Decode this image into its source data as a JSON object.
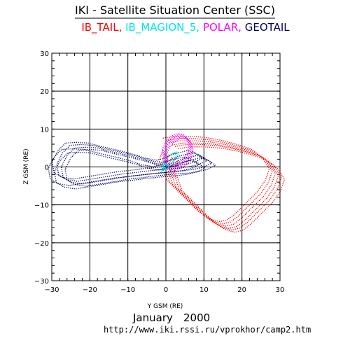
{
  "header": {
    "title": "IKI - Satellite Situation Center (SSC)",
    "satellites": [
      {
        "name": "IB_TAIL",
        "sep": ",",
        "color": "#ff0000"
      },
      {
        "name": "IB_MAGION_5",
        "sep": ",",
        "color": "#00e5e5"
      },
      {
        "name": "POLAR",
        "sep": ",",
        "color": "#ff00ff"
      },
      {
        "name": "GEOTAIL",
        "sep": "",
        "color": "#000066"
      }
    ]
  },
  "footer": {
    "month": "January",
    "year": "2000",
    "url": "http://www.iki.rssi.ru/vprokhor/camp2.htm"
  },
  "chart_data": {
    "type": "scatter",
    "title": "IB_TAIL, IB_MAGION_5, POLAR, GEOTAIL",
    "xlabel": "Y GSM (RE)",
    "ylabel": "Z GSM (RE)",
    "xlim": [
      -30,
      30
    ],
    "ylim": [
      -30,
      30
    ],
    "xticks": [
      -30,
      -20,
      -10,
      0,
      10,
      20,
      30
    ],
    "yticks": [
      -30,
      -20,
      -10,
      0,
      10,
      20,
      30
    ],
    "grid": true,
    "series": [
      {
        "name": "IB_TAIL",
        "color": "#ff0000",
        "style": "dotted-orbits",
        "x": [
          0,
          3,
          7,
          11,
          15,
          19,
          23,
          26,
          28,
          27,
          25,
          23,
          21,
          19,
          17,
          15,
          13,
          11,
          9,
          7,
          5,
          3,
          1,
          0,
          -1,
          0
        ],
        "y": [
          7,
          7.5,
          7.5,
          7.2,
          6.5,
          5.5,
          4.2,
          2,
          -1,
          -4,
          -7,
          -9,
          -11,
          -13,
          -14.5,
          -15,
          -14.5,
          -13.5,
          -12,
          -10,
          -8,
          -6,
          -4,
          -1,
          1,
          4
        ]
      },
      {
        "name": "IB_MAGION_5",
        "color": "#00e5e5",
        "style": "dotted-orbits",
        "x": [
          -1,
          0,
          1,
          2,
          2.8,
          3,
          2.6,
          1.8,
          0.8,
          -0.2,
          -0.8,
          -1
        ],
        "y": [
          -1,
          -0.5,
          0.5,
          1.6,
          2.5,
          3.2,
          3.8,
          3.6,
          2.8,
          1.8,
          0.5,
          -1
        ]
      },
      {
        "name": "POLAR",
        "color": "#ff00ff",
        "style": "dotted-orbits",
        "x": [
          0,
          -0.5,
          -1,
          0,
          1.5,
          3,
          4.5,
          5.5,
          6,
          5.5,
          4.5,
          3,
          1.5,
          0
        ],
        "y": [
          0,
          2,
          4.5,
          6.8,
          8.2,
          8.8,
          8.6,
          7.5,
          5.5,
          3.5,
          2,
          1,
          0.3,
          0
        ]
      },
      {
        "name": "GEOTAIL",
        "color": "#000066",
        "style": "dotted-orbits",
        "x": [
          12,
          10,
          8,
          6,
          4,
          2,
          0,
          -3,
          -6,
          -9,
          -12,
          -15,
          -18,
          -21,
          -24,
          -26,
          -27.5,
          -27,
          -25,
          -22,
          -19,
          -16,
          -13,
          -10,
          -7,
          -4,
          -1,
          2,
          5,
          8,
          10,
          11,
          12
        ],
        "y": [
          1,
          2.5,
          3,
          2.5,
          2,
          1,
          0.5,
          1,
          2,
          2.8,
          3.5,
          4.2,
          5,
          5.2,
          5,
          3,
          0,
          -2.8,
          -4,
          -4.5,
          -4,
          -3.5,
          -3,
          -2.5,
          -2.2,
          -1.8,
          -1.5,
          -1.2,
          -1,
          -0.5,
          0,
          0.5,
          1
        ]
      }
    ]
  }
}
